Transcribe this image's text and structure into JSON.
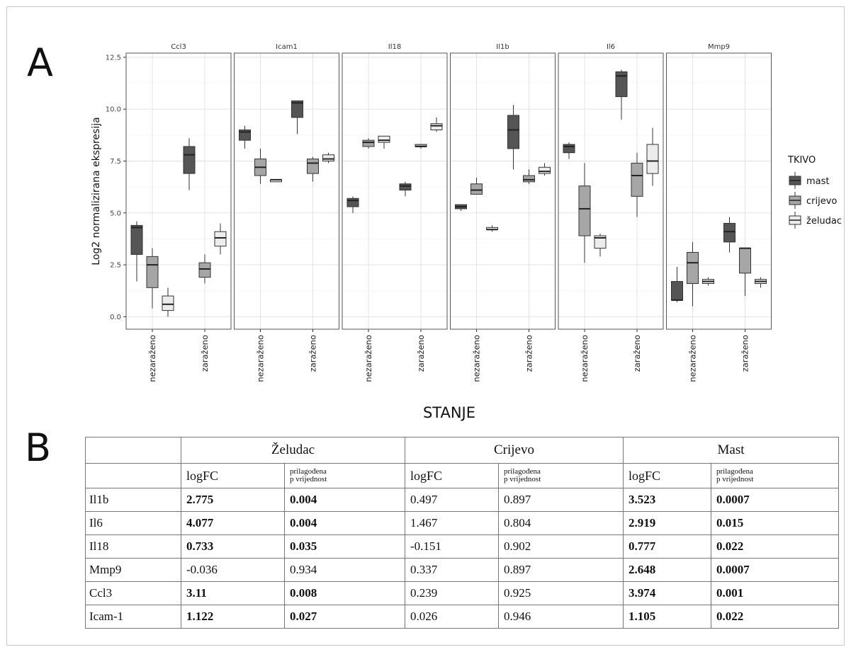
{
  "panel_labels": {
    "a": "A",
    "b": "B"
  },
  "colors": {
    "mast": "#555555",
    "crijevo": "#a6a6a6",
    "zeludac": "#ececec"
  },
  "chart_data": {
    "type": "boxplot",
    "facets": [
      "Ccl3",
      "Icam1",
      "Il18",
      "Il1b",
      "Il6",
      "Mmp9"
    ],
    "categories": [
      "nezaraženo",
      "zaraženo"
    ],
    "xlabel": "STANJE",
    "ylabel": "Log2 normalizirana ekspresija",
    "ylim": [
      -0.6,
      12.7
    ],
    "yticks": [
      "0.0",
      "2.5",
      "5.0",
      "7.5",
      "10.0",
      "12.5"
    ],
    "grid": true,
    "legend": {
      "title": "TKIVO",
      "position": "right",
      "entries": [
        "mast",
        "crijevo",
        "želudac"
      ]
    },
    "series_keys": [
      "mast",
      "crijevo",
      "zeludac"
    ],
    "boxes": {
      "Ccl3": {
        "nezaraženo": {
          "mast": [
            1.7,
            3.0,
            4.3,
            4.4,
            4.6
          ],
          "crijevo": [
            0.4,
            1.4,
            2.5,
            2.9,
            3.3
          ],
          "zeludac": [
            0.0,
            0.3,
            0.6,
            1.0,
            1.4
          ]
        },
        "zaraženo": {
          "mast": [
            6.1,
            6.9,
            7.8,
            8.2,
            8.6
          ],
          "crijevo": [
            1.6,
            1.9,
            2.3,
            2.6,
            3.0
          ],
          "zeludac": [
            3.0,
            3.4,
            3.8,
            4.1,
            4.5
          ]
        }
      },
      "Icam1": {
        "nezaraženo": {
          "mast": [
            8.1,
            8.5,
            8.9,
            9.0,
            9.2
          ],
          "crijevo": [
            6.4,
            6.8,
            7.2,
            7.6,
            8.1
          ],
          "zeludac": [
            6.5,
            6.5,
            6.6,
            6.6,
            6.6
          ]
        },
        "zaraženo": {
          "mast": [
            8.8,
            9.6,
            10.3,
            10.4,
            10.4
          ],
          "crijevo": [
            6.5,
            6.9,
            7.4,
            7.6,
            7.7
          ],
          "zeludac": [
            7.4,
            7.5,
            7.6,
            7.8,
            7.9
          ]
        }
      },
      "Il18": {
        "nezaraženo": {
          "mast": [
            5.0,
            5.3,
            5.6,
            5.7,
            5.8
          ],
          "crijevo": [
            8.1,
            8.2,
            8.4,
            8.5,
            8.6
          ],
          "zeludac": [
            8.1,
            8.4,
            8.5,
            8.7,
            8.7
          ]
        },
        "zaraženo": {
          "mast": [
            5.8,
            6.1,
            6.3,
            6.4,
            6.5
          ],
          "crijevo": [
            8.1,
            8.2,
            8.2,
            8.3,
            8.3
          ],
          "zeludac": [
            8.9,
            9.0,
            9.2,
            9.3,
            9.6
          ]
        }
      },
      "Il1b": {
        "nezaraženo": {
          "mast": [
            5.1,
            5.2,
            5.3,
            5.4,
            5.4
          ],
          "crijevo": [
            5.9,
            5.9,
            6.1,
            6.4,
            6.7
          ],
          "zeludac": [
            4.1,
            4.2,
            4.2,
            4.3,
            4.4
          ]
        },
        "zaraženo": {
          "mast": [
            7.1,
            8.1,
            9.0,
            9.7,
            10.2
          ],
          "crijevo": [
            6.4,
            6.5,
            6.6,
            6.8,
            7.1
          ],
          "zeludac": [
            6.8,
            6.9,
            7.0,
            7.2,
            7.4
          ]
        }
      },
      "Il6": {
        "nezaraženo": {
          "mast": [
            7.6,
            7.9,
            8.2,
            8.3,
            8.4
          ],
          "crijevo": [
            2.6,
            3.9,
            5.2,
            6.3,
            7.4
          ],
          "zeludac": [
            2.9,
            3.3,
            3.8,
            3.9,
            4.0
          ]
        },
        "zaraženo": {
          "mast": [
            9.5,
            10.6,
            11.6,
            11.8,
            11.9
          ],
          "crijevo": [
            4.8,
            5.8,
            6.8,
            7.4,
            7.9
          ],
          "zeludac": [
            6.3,
            6.9,
            7.5,
            8.3,
            9.1
          ]
        }
      },
      "Mmp9": {
        "nezaraženo": {
          "mast": [
            0.7,
            0.8,
            0.8,
            1.7,
            2.4
          ],
          "crijevo": [
            0.5,
            1.6,
            2.6,
            3.1,
            3.6
          ],
          "zeludac": [
            1.5,
            1.6,
            1.7,
            1.8,
            1.9
          ]
        },
        "zaraženo": {
          "mast": [
            3.1,
            3.6,
            4.1,
            4.5,
            4.8
          ],
          "crijevo": [
            1.0,
            2.1,
            3.3,
            3.3,
            3.3
          ],
          "zeludac": [
            1.4,
            1.6,
            1.7,
            1.8,
            1.9
          ]
        }
      }
    }
  },
  "table": {
    "groups": [
      "Želudac",
      "Crijevo",
      "Mast"
    ],
    "sub_logfc": "logFC",
    "sub_p_line1": "prilagođena",
    "sub_p_line2": "p vrijednost",
    "rows": [
      {
        "gene": "Il1b",
        "cells": [
          {
            "v": "2.775",
            "b": true
          },
          {
            "v": "0.004",
            "b": true
          },
          {
            "v": "0.497",
            "b": false
          },
          {
            "v": "0.897",
            "b": false
          },
          {
            "v": "3.523",
            "b": true
          },
          {
            "v": "0.0007",
            "b": true
          }
        ]
      },
      {
        "gene": "Il6",
        "cells": [
          {
            "v": "4.077",
            "b": true
          },
          {
            "v": "0.004",
            "b": true
          },
          {
            "v": "1.467",
            "b": false
          },
          {
            "v": "0.804",
            "b": false
          },
          {
            "v": "2.919",
            "b": true
          },
          {
            "v": "0.015",
            "b": true
          }
        ]
      },
      {
        "gene": "Il18",
        "cells": [
          {
            "v": "0.733",
            "b": true
          },
          {
            "v": "0.035",
            "b": true
          },
          {
            "v": "-0.151",
            "b": false
          },
          {
            "v": "0.902",
            "b": false
          },
          {
            "v": "0.777",
            "b": true
          },
          {
            "v": "0.022",
            "b": true
          }
        ]
      },
      {
        "gene": "Mmp9",
        "cells": [
          {
            "v": "-0.036",
            "b": false
          },
          {
            "v": "0.934",
            "b": false
          },
          {
            "v": "0.337",
            "b": false
          },
          {
            "v": "0.897",
            "b": false
          },
          {
            "v": "2.648",
            "b": true
          },
          {
            "v": "0.0007",
            "b": true
          }
        ]
      },
      {
        "gene": "Ccl3",
        "cells": [
          {
            "v": "3.11",
            "b": true
          },
          {
            "v": "0.008",
            "b": true
          },
          {
            "v": "0.239",
            "b": false
          },
          {
            "v": "0.925",
            "b": false
          },
          {
            "v": "3.974",
            "b": true
          },
          {
            "v": "0.001",
            "b": true
          }
        ]
      },
      {
        "gene": "Icam-1",
        "cells": [
          {
            "v": "1.122",
            "b": true
          },
          {
            "v": "0.027",
            "b": true
          },
          {
            "v": "0.026",
            "b": false
          },
          {
            "v": "0.946",
            "b": false
          },
          {
            "v": "1.105",
            "b": true
          },
          {
            "v": "0.022",
            "b": true
          }
        ]
      }
    ]
  }
}
